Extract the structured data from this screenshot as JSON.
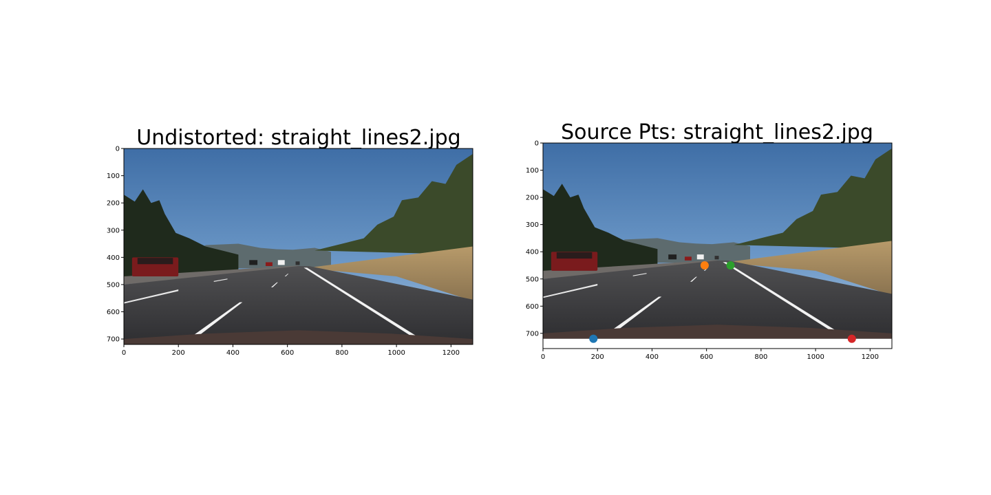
{
  "figure": {
    "background": "#ffffff"
  },
  "chart_data": [
    {
      "type": "image",
      "title": "Undistorted: straight_lines2.jpg",
      "xlim": [
        0,
        1280
      ],
      "ylim": [
        720,
        0
      ],
      "xticks": [
        0,
        200,
        400,
        600,
        800,
        1000,
        1200
      ],
      "yticks": [
        0,
        100,
        200,
        300,
        400,
        500,
        600,
        700
      ],
      "xtick_labels": [
        "0",
        "200",
        "400",
        "600",
        "800",
        "1000",
        "1200"
      ],
      "ytick_labels": [
        "0",
        "100",
        "200",
        "300",
        "400",
        "500",
        "600",
        "700"
      ],
      "image_content": "dashcam-highway-scene"
    },
    {
      "type": "scatter",
      "title": "Source Pts: straight_lines2.jpg",
      "xlim": [
        0,
        1280
      ],
      "ylim": [
        756,
        0
      ],
      "xticks": [
        0,
        200,
        400,
        600,
        800,
        1000,
        1200
      ],
      "yticks": [
        0,
        100,
        200,
        300,
        400,
        500,
        600,
        700
      ],
      "xtick_labels": [
        "0",
        "200",
        "400",
        "600",
        "800",
        "1000",
        "1200"
      ],
      "ytick_labels": [
        "0",
        "100",
        "200",
        "300",
        "400",
        "500",
        "600",
        "700"
      ],
      "image_content": "dashcam-highway-scene",
      "points": [
        {
          "x": 185,
          "y": 720,
          "color": "#1f77b4"
        },
        {
          "x": 593,
          "y": 450,
          "color": "#ff7f0e"
        },
        {
          "x": 688,
          "y": 450,
          "color": "#2ca02c"
        },
        {
          "x": 1133,
          "y": 720,
          "color": "#d62728"
        }
      ]
    }
  ]
}
